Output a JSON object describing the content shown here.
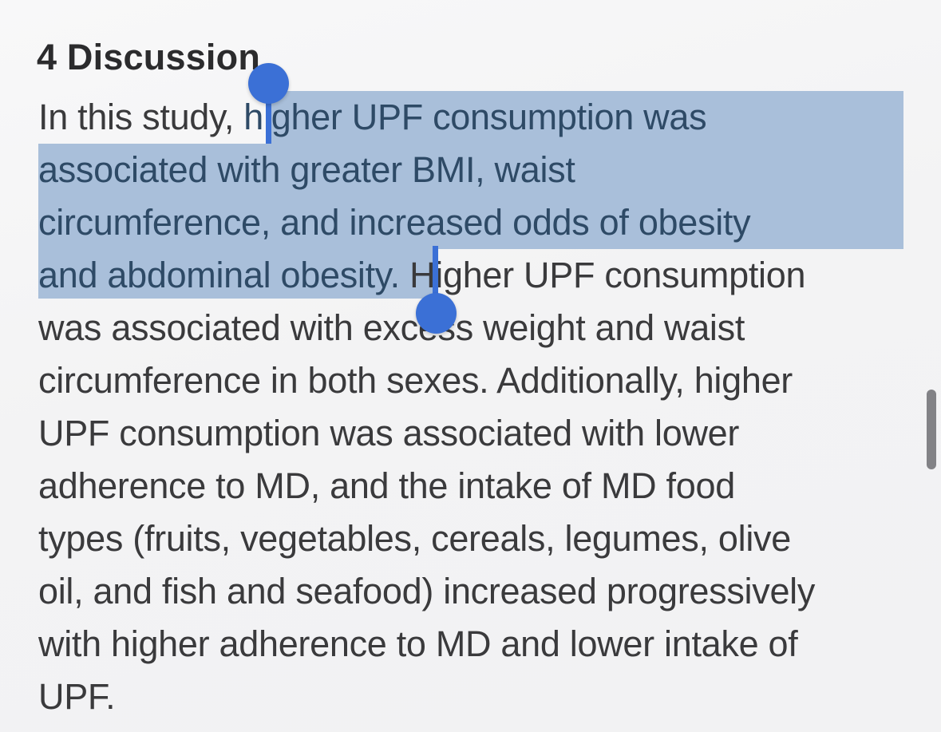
{
  "theme": {
    "bg": "#f4f4f5",
    "highlight": "#a9bfda",
    "handle": "#3b70d6",
    "seltext": "#2e4a66",
    "bodytext": "#3a3a3c",
    "headtext": "#2b2b2d",
    "scrollbar": "#828286"
  },
  "doc": {
    "heading": "4 Discussion",
    "lines": [
      {
        "pre": "In this study, ",
        "sel": "higher UPF consumption was",
        "post": ""
      },
      {
        "pre": "",
        "sel": "associated with greater BMI, waist",
        "post": ""
      },
      {
        "pre": "",
        "sel": "circumference, and increased odds of obesity",
        "post": ""
      },
      {
        "pre": "",
        "sel": "and abdominal obesity.",
        "post": " Higher UPF consumption"
      },
      {
        "pre": "was associated with excess weight and waist",
        "sel": "",
        "post": ""
      },
      {
        "pre": "circumference in both sexes. Additionally, higher",
        "sel": "",
        "post": ""
      },
      {
        "pre": "UPF consumption was associated with lower",
        "sel": "",
        "post": ""
      },
      {
        "pre": "adherence to MD, and the intake of MD food",
        "sel": "",
        "post": ""
      },
      {
        "pre": "types (fruits, vegetables, cereals, legumes, olive",
        "sel": "",
        "post": ""
      },
      {
        "pre": "oil, and fish and seafood) increased progressively",
        "sel": "",
        "post": ""
      },
      {
        "pre": "with higher adherence to MD and lower intake of",
        "sel": "",
        "post": ""
      },
      {
        "pre": "UPF.",
        "sel": "",
        "post": ""
      }
    ],
    "selection": {
      "selected_text": "higher UPF consumption was associated with greater BMI, waist circumference, and increased odds of obesity and abdominal obesity."
    }
  }
}
